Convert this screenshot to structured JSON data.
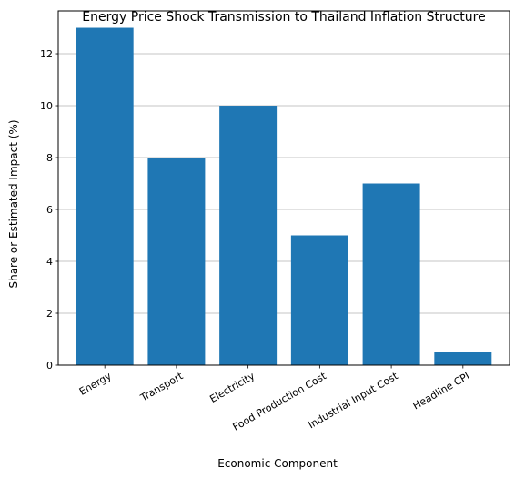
{
  "chart_data": {
    "type": "bar",
    "title": "Energy Price Shock Transmission to Thailand Inflation Structure",
    "xlabel": "Economic Component",
    "ylabel": "Share or Estimated Impact (%)",
    "categories": [
      "Energy",
      "Transport",
      "Electricity",
      "Food Production Cost",
      "Industrial Input Cost",
      "Headline CPI"
    ],
    "values": [
      13,
      8,
      10,
      5,
      7,
      0.5
    ],
    "ylim": [
      0,
      13.65
    ],
    "yticks": [
      0,
      2,
      4,
      6,
      8,
      10,
      12
    ],
    "grid": "y",
    "bar_color": "#1f77b4"
  }
}
